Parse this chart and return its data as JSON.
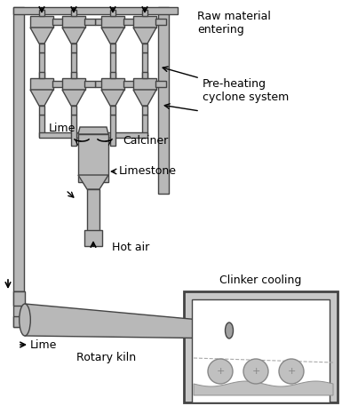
{
  "bg_color": "#ffffff",
  "g": "#b8b8b8",
  "eg": "#444444",
  "dg": "#888888",
  "figsize": [
    3.85,
    4.57
  ],
  "dpi": 100,
  "labels": {
    "raw_material": "Raw material\nentering",
    "pre_heating": "Pre-heating\ncyclone system",
    "lime_top": "Lime",
    "calciner": "Calciner",
    "limestone": "Limestone",
    "hot_air": "Hot air",
    "lime_bottom": "Lime",
    "rotary_kiln": "Rotary kiln",
    "clinker_cooling": "Clinker cooling"
  }
}
